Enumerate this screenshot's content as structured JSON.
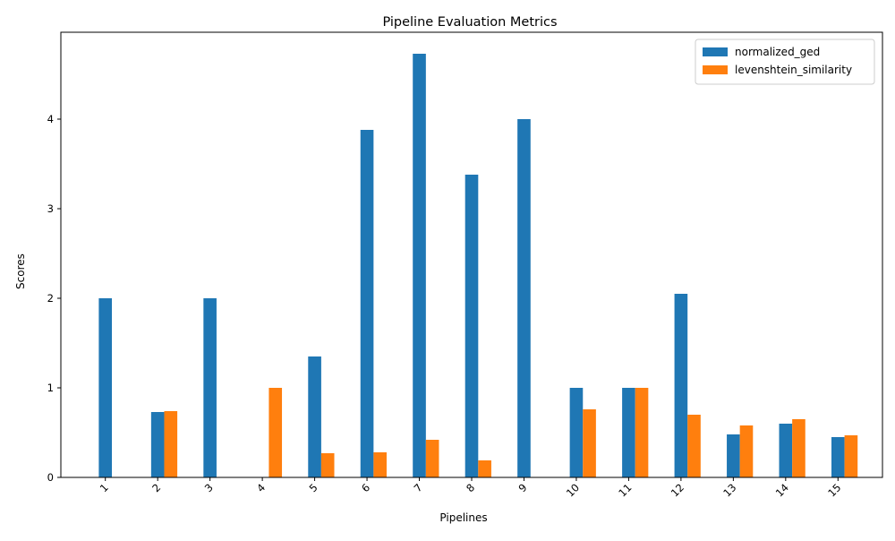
{
  "chart_data": {
    "type": "bar",
    "title": "Pipeline Evaluation Metrics",
    "xlabel": "Pipelines",
    "ylabel": "Scores",
    "categories": [
      "1",
      "2",
      "3",
      "4",
      "5",
      "6",
      "7",
      "8",
      "9",
      "10",
      "11",
      "12",
      "13",
      "14",
      "15"
    ],
    "series": [
      {
        "name": "normalized_ged",
        "color": "#1f77b4",
        "values": [
          2.0,
          0.73,
          2.0,
          0.0,
          1.35,
          3.88,
          4.73,
          3.38,
          4.0,
          1.0,
          1.0,
          2.05,
          0.48,
          0.6,
          0.45
        ]
      },
      {
        "name": "levenshtein_similarity",
        "color": "#ff7f0e",
        "values": [
          0.0,
          0.74,
          0.0,
          1.0,
          0.27,
          0.28,
          0.42,
          0.19,
          0.0,
          0.76,
          1.0,
          0.7,
          0.58,
          0.65,
          0.47
        ]
      }
    ],
    "yticks": [
      0,
      1,
      2,
      3,
      4
    ],
    "ylim": [
      0,
      4.97
    ],
    "grid": false,
    "legend": "top-right"
  }
}
